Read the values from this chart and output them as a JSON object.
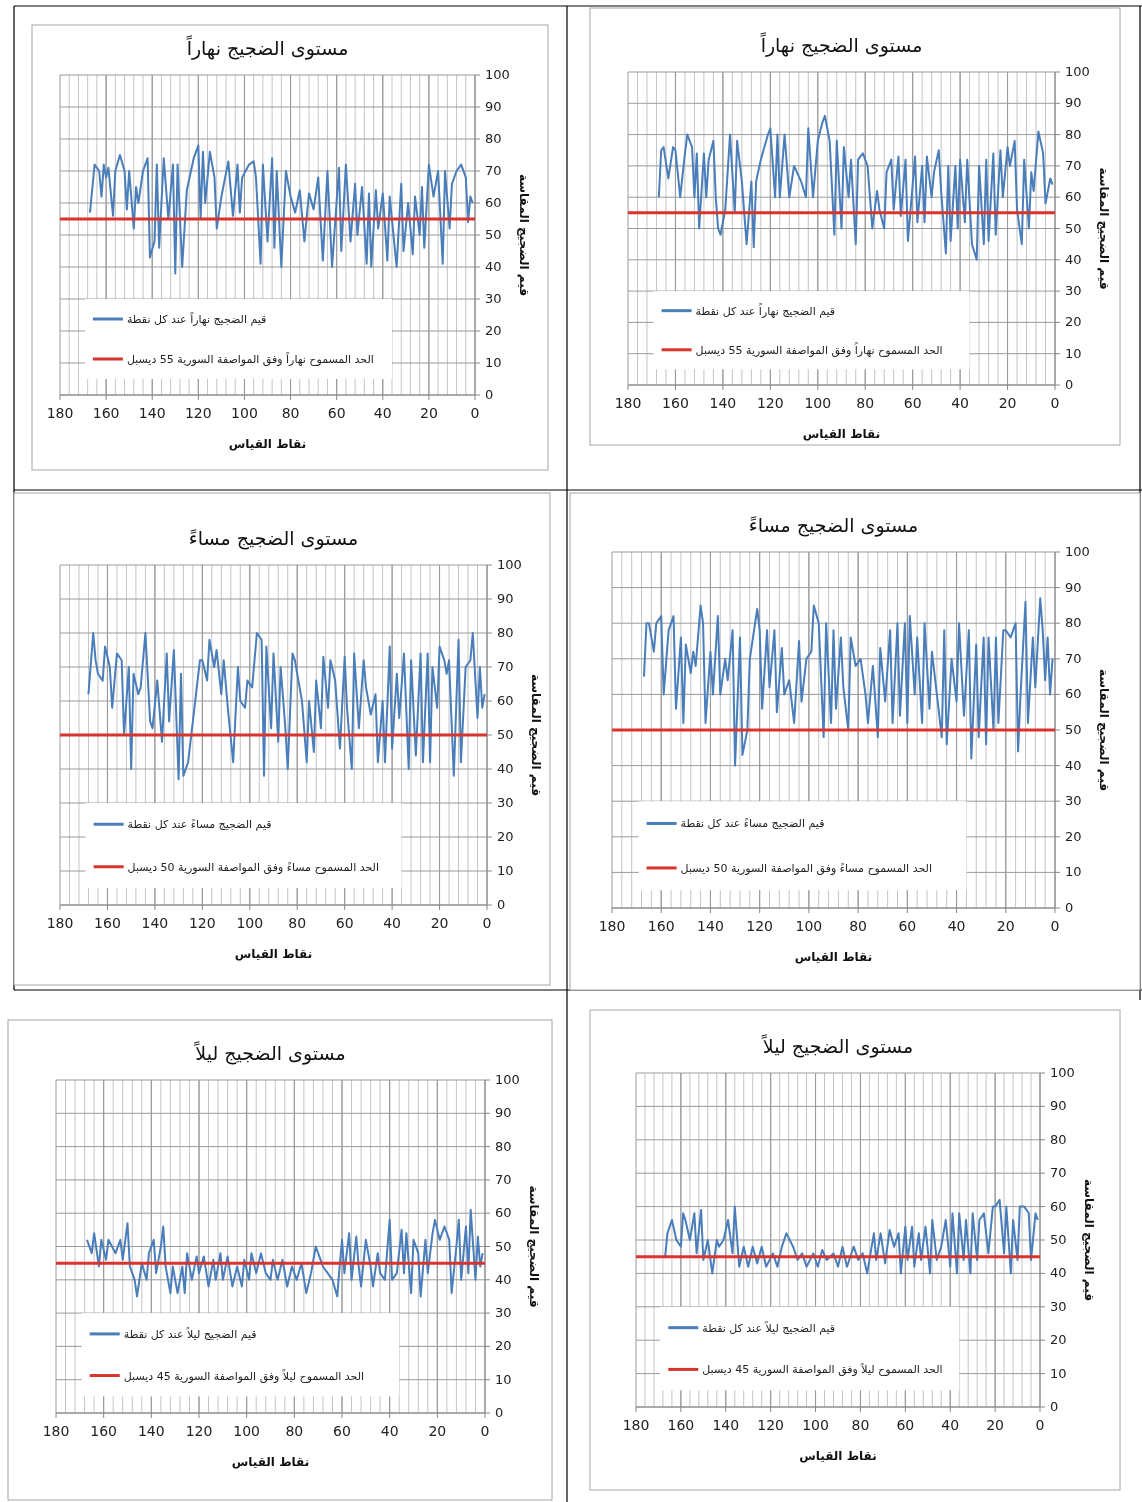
{
  "chart_data": [
    {
      "type": "line",
      "title": "مستوى الضجيج نهاراً",
      "xlabel": "نقاط القياس",
      "ylabel": "قيم الضجيج المقاسة",
      "xlim": [
        180,
        0
      ],
      "ylim": [
        0,
        100
      ],
      "xticks": [
        180,
        160,
        140,
        120,
        100,
        80,
        60,
        40,
        20,
        0
      ],
      "yticks": [
        0,
        10,
        20,
        30,
        40,
        50,
        60,
        70,
        80,
        90,
        100
      ],
      "grid": true,
      "legend": "bottom left",
      "series": [
        {
          "name": "قيم الضجيج نهاراً عند كل نقطة",
          "color": "#4a7ebb",
          "x": [
            167,
            165,
            163,
            162,
            161,
            160,
            159,
            157,
            156,
            154,
            152,
            151,
            150,
            148,
            147,
            146,
            144,
            142,
            141,
            139,
            138,
            137,
            135,
            133,
            131,
            130,
            129,
            127,
            125,
            122,
            120,
            119,
            118,
            117,
            115,
            113,
            112,
            110,
            107,
            105,
            103,
            102,
            101,
            98,
            96,
            95,
            93,
            92,
            90,
            88,
            87,
            86,
            84,
            82,
            80,
            78,
            76,
            74,
            72,
            70,
            68,
            66,
            64,
            62,
            59,
            58,
            56,
            54,
            52,
            51,
            49,
            47,
            46,
            45,
            43,
            42,
            40,
            38,
            37,
            34,
            32,
            31,
            29,
            27,
            26,
            24,
            23,
            22,
            20,
            18,
            16,
            14,
            13,
            11,
            10,
            8,
            6,
            4,
            3,
            2,
            1
          ],
          "values": [
            57,
            72,
            70,
            62,
            72,
            68,
            71,
            56,
            70,
            75,
            70,
            58,
            70,
            52,
            65,
            60,
            70,
            74,
            43,
            48,
            72,
            46,
            74,
            55,
            72,
            38,
            72,
            40,
            64,
            74,
            78,
            55,
            76,
            60,
            76,
            68,
            52,
            62,
            73,
            56,
            72,
            57,
            68,
            72,
            73,
            68,
            41,
            72,
            48,
            74,
            46,
            70,
            40,
            70,
            62,
            57,
            64,
            48,
            63,
            58,
            68,
            42,
            70,
            40,
            71,
            45,
            72,
            48,
            66,
            50,
            65,
            41,
            63,
            40,
            64,
            52,
            63,
            42,
            62,
            40,
            66,
            45,
            60,
            44,
            62,
            50,
            65,
            46,
            72,
            62,
            70,
            41,
            70,
            52,
            66,
            70,
            72,
            68,
            54,
            62,
            60
          ]
        },
        {
          "name": "الحد المسموح نهاراً وفق المواصفة السورية 55 ديسبل",
          "color": "#d9332e",
          "x": [
            180,
            0
          ],
          "values": [
            55,
            55
          ]
        }
      ]
    },
    {
      "type": "line",
      "title": "مستوى الضجيج نهاراً",
      "xlabel": "نقاط القياس",
      "ylabel": "قيم الضجيج المقاسة",
      "xlim": [
        180,
        0
      ],
      "ylim": [
        0,
        100
      ],
      "xticks": [
        180,
        160,
        140,
        120,
        100,
        80,
        60,
        40,
        20,
        0
      ],
      "yticks": [
        0,
        10,
        20,
        30,
        40,
        50,
        60,
        70,
        80,
        90,
        100
      ],
      "grid": true,
      "legend": "bottom left",
      "series": [
        {
          "name": "قيم الضجيج نهاراً عند كل نقطة",
          "color": "#4a7ebb",
          "x": [
            167,
            166,
            165,
            163,
            161,
            160,
            158,
            156,
            155,
            153,
            152,
            151,
            150,
            148,
            147,
            146,
            144,
            143,
            142,
            141,
            139,
            137,
            135,
            134,
            132,
            130,
            128,
            127,
            126,
            124,
            121,
            120,
            118,
            117,
            116,
            114,
            112,
            110,
            107,
            105,
            104,
            102,
            100,
            98,
            97,
            95,
            93,
            92,
            90,
            89,
            87,
            86,
            84,
            83,
            81,
            79,
            77,
            75,
            74,
            72,
            71,
            69,
            68,
            66,
            65,
            63,
            62,
            61,
            59,
            58,
            56,
            55,
            54,
            52,
            51,
            49,
            48,
            46,
            45,
            44,
            42,
            41,
            40,
            38,
            37,
            35,
            33,
            32,
            30,
            29,
            28,
            26,
            25,
            23,
            22,
            20,
            19,
            17,
            16,
            14,
            13,
            11,
            10,
            9,
            7,
            5,
            4,
            2,
            1
          ],
          "values": [
            60,
            75,
            76,
            66,
            76,
            75,
            60,
            74,
            80,
            76,
            60,
            74,
            50,
            74,
            60,
            72,
            78,
            60,
            50,
            48,
            56,
            80,
            55,
            78,
            65,
            45,
            65,
            44,
            65,
            72,
            80,
            82,
            60,
            80,
            60,
            80,
            60,
            70,
            65,
            60,
            82,
            60,
            78,
            84,
            86,
            78,
            48,
            78,
            50,
            76,
            60,
            72,
            45,
            72,
            74,
            70,
            50,
            62,
            56,
            50,
            68,
            72,
            56,
            73,
            54,
            72,
            46,
            55,
            73,
            52,
            70,
            52,
            73,
            60,
            68,
            75,
            62,
            42,
            70,
            46,
            70,
            50,
            72,
            52,
            72,
            45,
            40,
            70,
            45,
            72,
            46,
            74,
            48,
            75,
            60,
            76,
            70,
            78,
            56,
            45,
            72,
            50,
            68,
            62,
            81,
            74,
            58,
            66,
            64
          ]
        },
        {
          "name": "الحد المسموح نهاراً وفق المواصفة السورية 55 ديسبل",
          "color": "#d9332e",
          "x": [
            180,
            0
          ],
          "values": [
            55,
            55
          ]
        }
      ]
    },
    {
      "type": "line",
      "title": "مستوى الضجيج مساءً",
      "xlabel": "نقاط القياس",
      "ylabel": "قيم الضجيج المقاسة",
      "xlim": [
        180,
        0
      ],
      "ylim": [
        0,
        100
      ],
      "xticks": [
        180,
        160,
        140,
        120,
        100,
        80,
        60,
        40,
        20,
        0
      ],
      "yticks": [
        0,
        10,
        20,
        30,
        40,
        50,
        60,
        70,
        80,
        90,
        100
      ],
      "grid": true,
      "legend": "bottom left",
      "series": [
        {
          "name": "قيم الضجيج مساءً عند كل نقطة",
          "color": "#4a7ebb",
          "x": [
            168,
            166,
            165,
            164,
            162,
            161,
            159,
            158,
            156,
            154,
            153,
            151,
            150,
            149,
            147,
            146,
            144,
            142,
            141,
            139,
            137,
            135,
            134,
            132,
            130,
            129,
            128,
            126,
            123,
            121,
            120,
            118,
            117,
            115,
            114,
            112,
            111,
            109,
            107,
            105,
            104,
            102,
            101,
            99,
            97,
            95,
            94,
            93,
            91,
            90,
            88,
            87,
            85,
            84,
            82,
            81,
            79,
            78,
            76,
            75,
            73,
            72,
            70,
            69,
            67,
            66,
            64,
            62,
            60,
            59,
            57,
            56,
            54,
            52,
            51,
            49,
            47,
            46,
            44,
            43,
            41,
            40,
            38,
            37,
            35,
            33,
            32,
            30,
            28,
            27,
            25,
            24,
            23,
            21,
            20,
            18,
            17,
            16,
            14,
            12,
            11,
            9,
            7,
            6,
            4,
            3,
            2,
            1
          ],
          "values": [
            62,
            80,
            72,
            68,
            66,
            76,
            70,
            58,
            74,
            72,
            50,
            70,
            40,
            68,
            62,
            64,
            80,
            54,
            52,
            66,
            48,
            74,
            54,
            75,
            37,
            68,
            38,
            42,
            60,
            72,
            72,
            66,
            78,
            70,
            75,
            62,
            72,
            56,
            42,
            70,
            60,
            58,
            66,
            64,
            80,
            78,
            38,
            76,
            52,
            74,
            48,
            70,
            52,
            40,
            74,
            72,
            64,
            60,
            42,
            60,
            45,
            66,
            52,
            73,
            58,
            72,
            66,
            46,
            73,
            58,
            40,
            74,
            52,
            72,
            64,
            56,
            62,
            42,
            60,
            42,
            76,
            46,
            68,
            55,
            74,
            40,
            72,
            44,
            74,
            42,
            74,
            42,
            70,
            58,
            76,
            72,
            68,
            72,
            38,
            78,
            42,
            70,
            72,
            80,
            55,
            70,
            58,
            62
          ]
        },
        {
          "name": "الحد المسموح مساءً وفق المواصفة السورية 50 ديسبل",
          "color": "#d9332e",
          "x": [
            180,
            0
          ],
          "values": [
            50,
            50
          ]
        }
      ]
    },
    {
      "type": "line",
      "title": "مستوى الضجيج مساءً",
      "xlabel": "نقاط القياس",
      "ylabel": "قيم الضجيج المقاسة",
      "xlim": [
        180,
        0
      ],
      "ylim": [
        0,
        100
      ],
      "xticks": [
        180,
        160,
        140,
        120,
        100,
        80,
        60,
        40,
        20,
        0
      ],
      "yticks": [
        0,
        10,
        20,
        30,
        40,
        50,
        60,
        70,
        80,
        90,
        100
      ],
      "grid": true,
      "legend": "bottom left",
      "series": [
        {
          "name": "قيم الضجيج مساءً عند كل نقطة",
          "color": "#4a7ebb",
          "x": [
            167,
            166,
            165,
            163,
            162,
            160,
            159,
            157,
            155,
            154,
            152,
            151,
            150,
            148,
            147,
            146,
            144,
            143,
            142,
            140,
            139,
            137,
            136,
            134,
            133,
            131,
            130,
            128,
            127,
            125,
            124,
            121,
            120,
            119,
            117,
            116,
            114,
            113,
            111,
            110,
            108,
            106,
            104,
            103,
            101,
            99,
            98,
            96,
            94,
            93,
            91,
            90,
            89,
            87,
            86,
            84,
            83,
            81,
            79,
            77,
            76,
            74,
            72,
            71,
            69,
            67,
            66,
            64,
            63,
            61,
            60,
            59,
            57,
            56,
            54,
            53,
            51,
            50,
            48,
            46,
            45,
            44,
            42,
            40,
            39,
            37,
            35,
            34,
            32,
            31,
            29,
            28,
            27,
            25,
            24,
            23,
            21,
            20,
            18,
            16,
            15,
            14,
            12,
            11,
            9,
            8,
            6,
            5,
            4,
            3,
            2,
            1
          ],
          "values": [
            65,
            80,
            80,
            72,
            80,
            82,
            60,
            78,
            82,
            56,
            76,
            52,
            74,
            66,
            72,
            68,
            85,
            80,
            52,
            72,
            60,
            82,
            60,
            70,
            64,
            78,
            40,
            76,
            43,
            50,
            70,
            84,
            78,
            56,
            78,
            62,
            78,
            55,
            73,
            60,
            64,
            52,
            75,
            58,
            70,
            72,
            85,
            80,
            48,
            80,
            52,
            78,
            56,
            76,
            62,
            50,
            76,
            68,
            70,
            60,
            52,
            68,
            48,
            73,
            58,
            78,
            52,
            80,
            54,
            80,
            52,
            82,
            60,
            76,
            52,
            80,
            56,
            72,
            60,
            48,
            78,
            46,
            70,
            58,
            80,
            54,
            78,
            42,
            74,
            48,
            76,
            46,
            76,
            50,
            76,
            52,
            78,
            78,
            76,
            80,
            44,
            60,
            86,
            52,
            76,
            62,
            87,
            78,
            64,
            76,
            60,
            70
          ]
        },
        {
          "name": "الحد المسموح مساءً وفق المواصفة السورية 50 ديسبل",
          "color": "#d9332e",
          "x": [
            180,
            0
          ],
          "values": [
            50,
            50
          ]
        }
      ]
    },
    {
      "type": "line",
      "title": "مستوى الضجيج ليلاً",
      "xlabel": "نقاط القياس",
      "ylabel": "قيم الضجيج المقاسة",
      "xlim": [
        180,
        0
      ],
      "ylim": [
        0,
        100
      ],
      "xticks": [
        180,
        160,
        140,
        120,
        100,
        80,
        60,
        40,
        20,
        0
      ],
      "yticks": [
        0,
        10,
        20,
        30,
        40,
        50,
        60,
        70,
        80,
        90,
        100
      ],
      "grid": true,
      "legend": "bottom left",
      "series": [
        {
          "name": "قيم الضجيج ليلاً عند كل نقطة",
          "color": "#4a7ebb",
          "x": [
            167,
            165,
            164,
            162,
            161,
            159,
            158,
            155,
            153,
            152,
            150,
            149,
            147,
            146,
            144,
            142,
            141,
            139,
            138,
            136,
            135,
            134,
            132,
            131,
            129,
            127,
            126,
            125,
            123,
            121,
            120,
            118,
            116,
            114,
            113,
            111,
            110,
            108,
            106,
            104,
            102,
            101,
            99,
            98,
            96,
            94,
            92,
            90,
            89,
            87,
            85,
            83,
            81,
            79,
            77,
            75,
            73,
            71,
            69,
            68,
            66,
            64,
            62,
            61,
            60,
            59,
            57,
            56,
            54,
            53,
            52,
            50,
            48,
            47,
            45,
            44,
            42,
            40,
            39,
            37,
            35,
            34,
            33,
            31,
            30,
            28,
            27,
            25,
            24,
            22,
            21,
            19,
            17,
            15,
            14,
            12,
            11,
            10,
            8,
            7,
            6,
            4,
            3,
            2,
            1
          ],
          "values": [
            52,
            48,
            54,
            44,
            52,
            46,
            52,
            48,
            52,
            46,
            57,
            44,
            40,
            35,
            45,
            40,
            48,
            52,
            42,
            50,
            56,
            44,
            36,
            44,
            36,
            44,
            36,
            48,
            40,
            47,
            42,
            47,
            38,
            46,
            40,
            48,
            40,
            47,
            38,
            44,
            38,
            46,
            40,
            48,
            42,
            48,
            42,
            40,
            46,
            40,
            46,
            38,
            44,
            40,
            45,
            36,
            42,
            50,
            46,
            44,
            42,
            40,
            35,
            44,
            52,
            42,
            54,
            40,
            53,
            44,
            38,
            52,
            44,
            38,
            48,
            42,
            40,
            58,
            40,
            42,
            55,
            42,
            54,
            36,
            52,
            48,
            35,
            52,
            42,
            54,
            58,
            52,
            56,
            52,
            36,
            50,
            58,
            40,
            56,
            42,
            61,
            40,
            53,
            44,
            48
          ]
        },
        {
          "name": "الحد المسموح ليلاً وفق المواصفة السورية 45 ديسبل",
          "color": "#d9332e",
          "x": [
            180,
            0
          ],
          "values": [
            45,
            45
          ]
        }
      ]
    },
    {
      "type": "line",
      "title": "مستوى الضجيج ليلاً",
      "xlabel": "نقاط القياس",
      "ylabel": "قيم الضجيج المقاسة",
      "xlim": [
        180,
        0
      ],
      "ylim": [
        0,
        100
      ],
      "xticks": [
        180,
        160,
        140,
        120,
        100,
        80,
        60,
        40,
        20,
        0
      ],
      "yticks": [
        0,
        10,
        20,
        30,
        40,
        50,
        60,
        70,
        80,
        90,
        100
      ],
      "grid": true,
      "legend": "bottom left",
      "series": [
        {
          "name": "قيم الضجيج ليلاً عند كل نقطة",
          "color": "#4a7ebb",
          "x": [
            167,
            166,
            164,
            162,
            160,
            159,
            158,
            156,
            154,
            153,
            151,
            150,
            148,
            146,
            144,
            143,
            141,
            139,
            137,
            136,
            134,
            132,
            130,
            128,
            126,
            124,
            122,
            119,
            117,
            115,
            113,
            110,
            108,
            106,
            104,
            101,
            99,
            97,
            95,
            92,
            90,
            88,
            86,
            83,
            81,
            79,
            77,
            74,
            73,
            71,
            69,
            67,
            65,
            63,
            62,
            60,
            59,
            57,
            56,
            54,
            53,
            51,
            49,
            48,
            46,
            44,
            42,
            40,
            39,
            37,
            36,
            34,
            33,
            31,
            30,
            28,
            27,
            25,
            23,
            21,
            20,
            18,
            16,
            15,
            13,
            12,
            10,
            9,
            7,
            5,
            4,
            2,
            1
          ],
          "values": [
            45,
            52,
            56,
            50,
            48,
            58,
            56,
            50,
            58,
            46,
            59,
            44,
            50,
            40,
            50,
            48,
            50,
            56,
            46,
            60,
            42,
            48,
            42,
            48,
            43,
            48,
            42,
            46,
            42,
            48,
            52,
            48,
            44,
            46,
            42,
            46,
            42,
            47,
            44,
            46,
            42,
            48,
            42,
            48,
            44,
            46,
            40,
            52,
            44,
            52,
            43,
            53,
            48,
            52,
            40,
            54,
            44,
            54,
            42,
            52,
            44,
            54,
            40,
            56,
            44,
            48,
            56,
            42,
            58,
            40,
            58,
            44,
            56,
            40,
            58,
            44,
            56,
            58,
            46,
            60,
            60,
            62,
            46,
            60,
            40,
            56,
            44,
            60,
            60,
            58,
            44,
            58,
            56
          ]
        },
        {
          "name": "الحد المسموح ليلاً وفق المواصفة السورية 45 ديسبل",
          "color": "#d9332e",
          "x": [
            180,
            0
          ],
          "values": [
            45,
            45
          ]
        }
      ]
    }
  ]
}
